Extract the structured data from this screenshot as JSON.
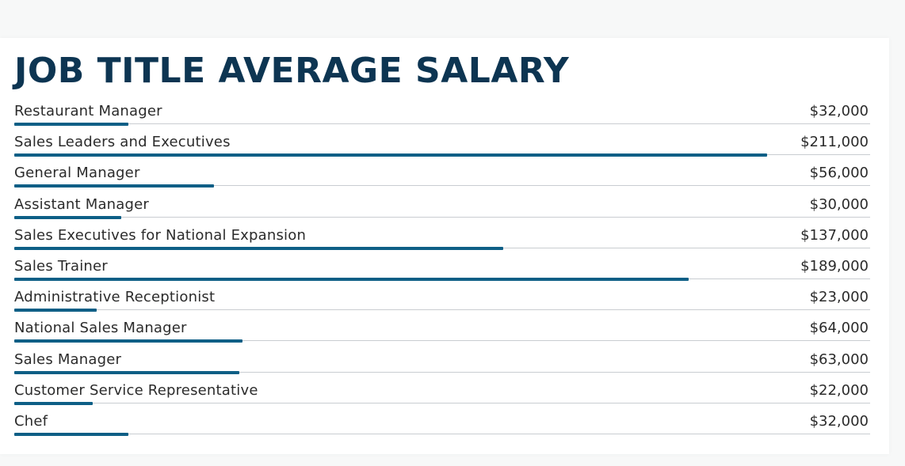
{
  "colors": {
    "title": "#0d3552",
    "bar": "#0e5f86",
    "rule": "#c9cdd1",
    "text": "#2b2b2b"
  },
  "chart_data": {
    "type": "bar",
    "orientation": "horizontal",
    "title": "JOB TITLE AVERAGE SALARY",
    "categories": [
      "Restaurant Manager",
      "Sales Leaders and Executives",
      "General Manager",
      "Assistant Manager",
      "Sales Executives for National Expansion",
      "Sales Trainer",
      "Administrative Receptionist",
      "National Sales Manager",
      "Sales Manager",
      "Customer Service Representative",
      "Chef"
    ],
    "values": [
      32000,
      211000,
      56000,
      30000,
      137000,
      189000,
      23000,
      64000,
      63000,
      22000,
      32000
    ],
    "value_labels": [
      "$32,000",
      "$211,000",
      "$56,000",
      "$30,000",
      "$137,000",
      "$189,000",
      "$23,000",
      "$64,000",
      "$63,000",
      "$22,000",
      "$32,000"
    ],
    "xlim": [
      0,
      240000
    ],
    "grid": false,
    "legend": "none"
  }
}
